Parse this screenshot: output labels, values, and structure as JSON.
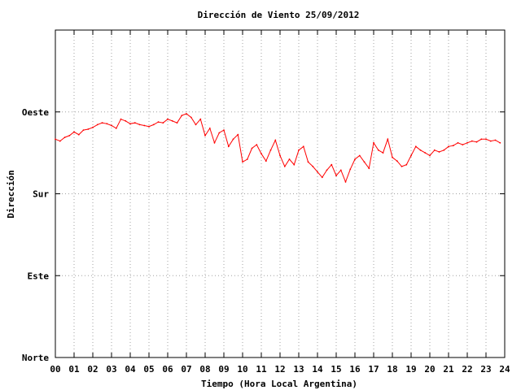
{
  "chart_data": {
    "type": "line",
    "title": "Dirección de Viento 25/09/2012",
    "xlabel": "Tiempo (Hora Local Argentina)",
    "ylabel": "Dirección",
    "x_ticks": [
      "00",
      "01",
      "02",
      "03",
      "04",
      "05",
      "06",
      "07",
      "08",
      "09",
      "10",
      "11",
      "12",
      "13",
      "14",
      "15",
      "16",
      "17",
      "18",
      "19",
      "20",
      "21",
      "22",
      "23",
      "24"
    ],
    "xlim": [
      0,
      24
    ],
    "y_ticks": [
      {
        "label": "Norte",
        "value": 0
      },
      {
        "label": "Este",
        "value": 90
      },
      {
        "label": "Sur",
        "value": 180
      },
      {
        "label": "Oeste",
        "value": 270
      }
    ],
    "ylim": [
      0,
      360
    ],
    "grid": true,
    "series": [
      {
        "color": "#ff0000",
        "x": [
          0.0,
          0.25,
          0.5,
          0.75,
          1.0,
          1.25,
          1.5,
          1.75,
          2.0,
          2.25,
          2.5,
          2.75,
          3.0,
          3.25,
          3.5,
          3.75,
          4.0,
          4.25,
          4.5,
          4.75,
          5.0,
          5.25,
          5.5,
          5.75,
          6.0,
          6.25,
          6.5,
          6.75,
          7.0,
          7.25,
          7.5,
          7.75,
          8.0,
          8.25,
          8.5,
          8.75,
          9.0,
          9.25,
          9.5,
          9.75,
          10.0,
          10.25,
          10.5,
          10.75,
          11.0,
          11.25,
          11.5,
          11.75,
          12.0,
          12.25,
          12.5,
          12.75,
          13.0,
          13.25,
          13.5,
          13.75,
          14.0,
          14.25,
          14.5,
          14.75,
          15.0,
          15.25,
          15.5,
          15.75,
          16.0,
          16.25,
          16.5,
          16.75,
          17.0,
          17.25,
          17.5,
          17.75,
          18.0,
          18.25,
          18.5,
          18.75,
          19.0,
          19.25,
          19.5,
          19.75,
          20.0,
          20.25,
          20.5,
          20.75,
          21.0,
          21.25,
          21.5,
          21.75,
          22.0,
          22.25,
          22.5,
          22.75,
          23.0,
          23.25,
          23.5,
          23.75
        ],
        "y": [
          240,
          238,
          242,
          244,
          248,
          245,
          250,
          251,
          253,
          256,
          258,
          257,
          255,
          252,
          262,
          260,
          257,
          258,
          256,
          255,
          254,
          256,
          259,
          258,
          262,
          260,
          258,
          266,
          268,
          264,
          256,
          262,
          244,
          252,
          236,
          247,
          250,
          232,
          240,
          245,
          215,
          218,
          230,
          234,
          224,
          216,
          228,
          239,
          222,
          210,
          218,
          212,
          228,
          232,
          215,
          210,
          204,
          198,
          206,
          212,
          200,
          206,
          193,
          207,
          218,
          222,
          215,
          208,
          236,
          228,
          225,
          240,
          220,
          216,
          210,
          212,
          222,
          232,
          228,
          225,
          222,
          228,
          226,
          228,
          232,
          233,
          236,
          234,
          236,
          238,
          237,
          240,
          240,
          238,
          239,
          236
        ]
      }
    ]
  }
}
